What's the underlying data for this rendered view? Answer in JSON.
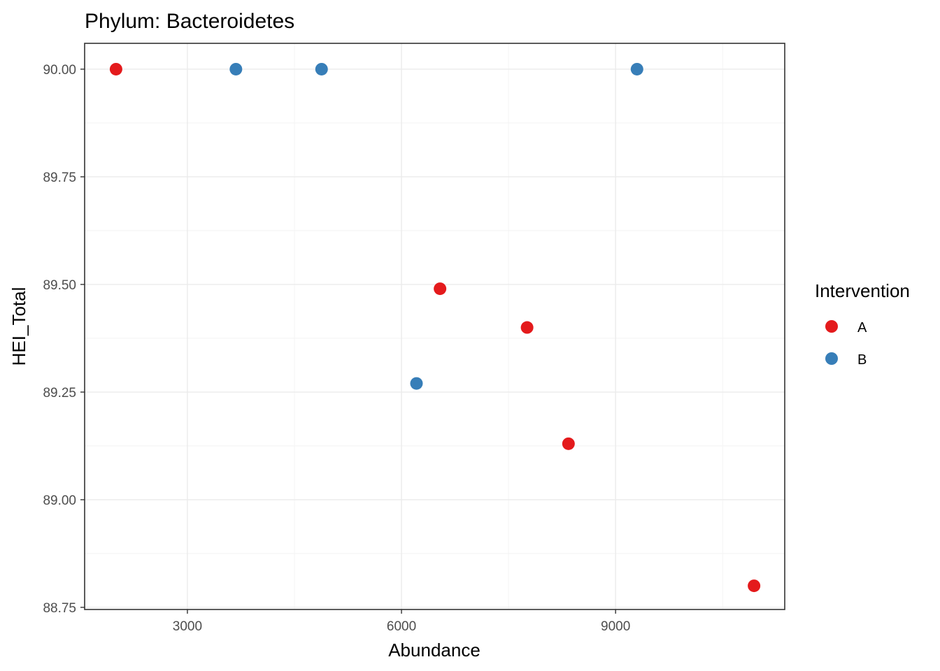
{
  "chart_data": {
    "type": "scatter",
    "title": "Phylum: Bacteroidetes",
    "xlabel": "Abundance",
    "ylabel": "HEI_Total",
    "xlim": [
      1560,
      11370
    ],
    "ylim": [
      88.745,
      90.06
    ],
    "x_ticks": [
      3000,
      6000,
      9000
    ],
    "x_tick_labels": [
      "3000",
      "6000",
      "9000"
    ],
    "y_ticks": [
      88.75,
      89.0,
      89.25,
      89.5,
      89.75,
      90.0
    ],
    "y_tick_labels": [
      "88.75",
      "89.00",
      "89.25",
      "89.50",
      "89.75",
      "90.00"
    ],
    "grid": true,
    "legend": {
      "title": "Intervention",
      "position": "right"
    },
    "series": [
      {
        "name": "A",
        "color": "#e41a1c",
        "points": [
          {
            "x": 2000,
            "y": 90.0
          },
          {
            "x": 6540,
            "y": 89.49
          },
          {
            "x": 7760,
            "y": 89.4
          },
          {
            "x": 8340,
            "y": 89.13
          },
          {
            "x": 10940,
            "y": 88.8
          }
        ]
      },
      {
        "name": "B",
        "color": "#377eb8",
        "points": [
          {
            "x": 3680,
            "y": 90.0
          },
          {
            "x": 4880,
            "y": 90.0
          },
          {
            "x": 6210,
            "y": 89.27
          },
          {
            "x": 9300,
            "y": 90.0
          }
        ]
      }
    ]
  }
}
